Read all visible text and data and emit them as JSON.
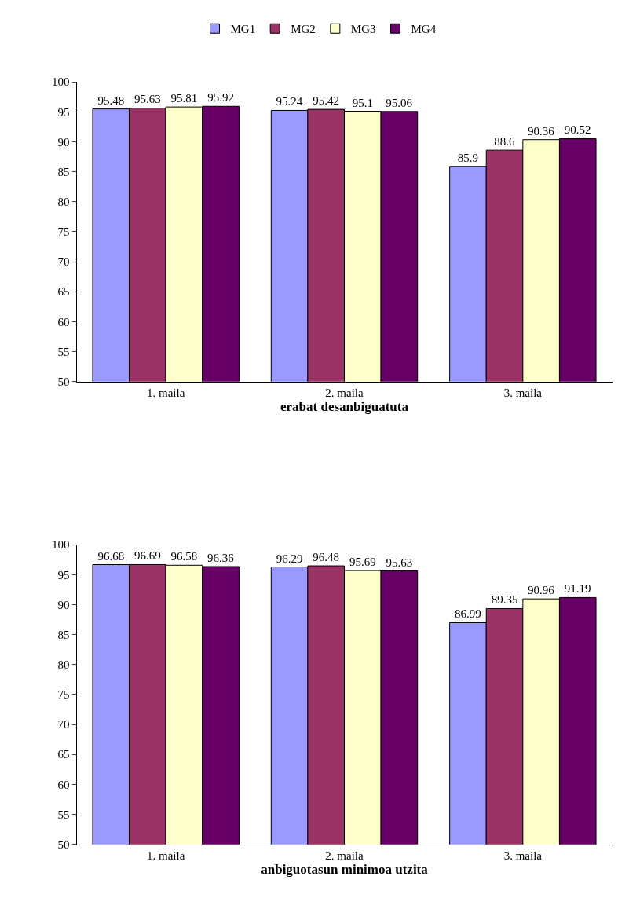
{
  "chart_data": [
    {
      "type": "bar",
      "xlabel": "erabat desanbiguatuta",
      "categories": [
        "1. maila",
        "2. maila",
        "3. maila"
      ],
      "series": [
        {
          "name": "MG1",
          "color": "#9999ff",
          "values": [
            95.48,
            95.24,
            85.9
          ]
        },
        {
          "name": "MG2",
          "color": "#993366",
          "values": [
            95.63,
            95.42,
            88.6
          ]
        },
        {
          "name": "MG3",
          "color": "#ffffcc",
          "values": [
            95.81,
            95.1,
            90.36
          ]
        },
        {
          "name": "MG4",
          "color": "#660066",
          "values": [
            95.92,
            95.06,
            90.52
          ]
        }
      ],
      "ylim": [
        50,
        100
      ],
      "yticks": [
        50,
        55,
        60,
        65,
        70,
        75,
        80,
        85,
        90,
        95,
        100
      ],
      "legend": "top",
      "data_labels": true
    },
    {
      "type": "bar",
      "xlabel": "anbiguotasun minimoa utzita",
      "categories": [
        "1. maila",
        "2. maila",
        "3. maila"
      ],
      "series": [
        {
          "color": "#9999ff",
          "values": [
            96.68,
            96.29,
            86.99
          ]
        },
        {
          "color": "#993366",
          "values": [
            96.69,
            96.48,
            89.35
          ]
        },
        {
          "color": "#ffffcc",
          "values": [
            96.58,
            95.69,
            90.96
          ]
        },
        {
          "color": "#660066",
          "values": [
            96.36,
            95.63,
            91.19
          ]
        }
      ],
      "ylim": [
        50,
        100
      ],
      "yticks": [
        50,
        55,
        60,
        65,
        70,
        75,
        80,
        85,
        90,
        95,
        100
      ],
      "data_labels": true
    }
  ]
}
